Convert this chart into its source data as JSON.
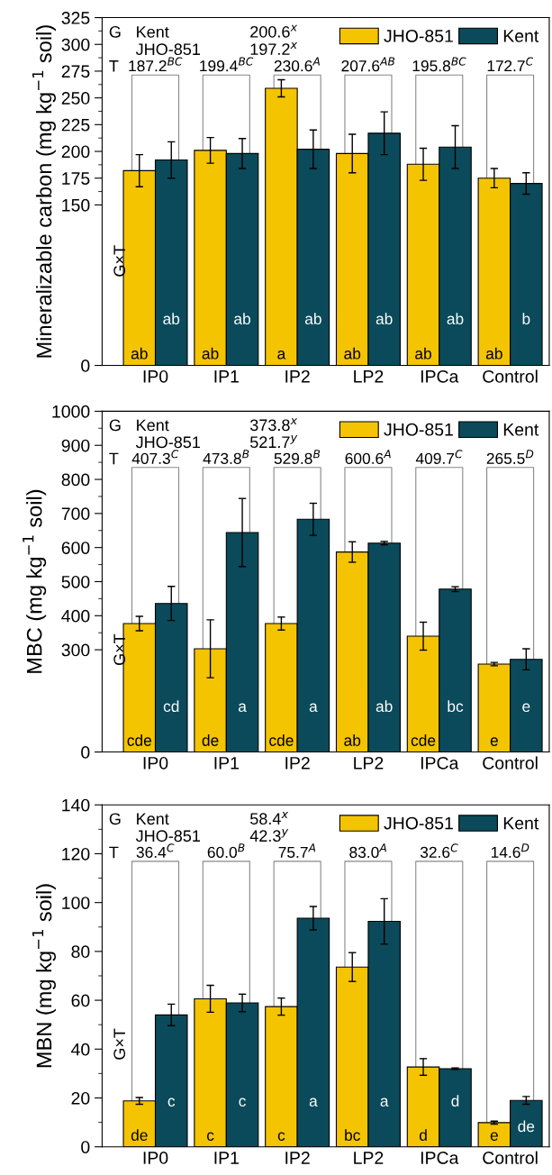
{
  "chart_data": [
    {
      "type": "bar",
      "ylabel": "Mineralizable carbon (mg kg$^{−1}$ soil)",
      "categories": [
        "IP0",
        "IP1",
        "IP2",
        "LP2",
        "IPCa",
        "Control"
      ],
      "ylim": [
        0,
        325
      ],
      "yticks": [
        0,
        150,
        175,
        200,
        225,
        250,
        275,
        300,
        325
      ],
      "legend": "top right",
      "grid": false,
      "series": [
        {
          "name": "JHO-851",
          "color": "#f5c400",
          "values": [
            182,
            201,
            259,
            198,
            188,
            175
          ],
          "errors": [
            15,
            12,
            8,
            18,
            15,
            9
          ],
          "value_labels": [
            "ab",
            "ab",
            "a",
            "ab",
            "ab",
            "ab"
          ]
        },
        {
          "name": "Kent",
          "color": "#0b4a5a",
          "values": [
            192,
            198,
            202,
            217,
            204,
            170
          ],
          "errors": [
            17,
            14,
            18,
            20,
            20,
            10
          ],
          "value_labels": [
            "ab",
            "ab",
            "ab",
            "ab",
            "ab",
            "b"
          ]
        }
      ],
      "annotations": [
        "G",
        "Kent",
        "200.6$^{x}$",
        "JHO-851",
        "197.2$^{x}$",
        "T",
        "G×T",
        "187.2$^{BC}$",
        "199.4$^{BC}$",
        "230.6$^{A}$",
        "207.6$^{AB}$",
        "195.8$^{BC}$",
        "172.7$^{C}$"
      ]
    },
    {
      "type": "bar",
      "ylabel": "MBC (mg kg$^{−1}$ soil)",
      "categories": [
        "IP0",
        "IP1",
        "IP2",
        "LP2",
        "IPCa",
        "Control"
      ],
      "ylim": [
        0,
        1000
      ],
      "yticks": [
        0,
        300,
        400,
        500,
        600,
        700,
        800,
        900,
        1000
      ],
      "legend": "top right",
      "grid": false,
      "series": [
        {
          "name": "JHO-851",
          "color": "#f5c400",
          "values": [
            377,
            303,
            377,
            587,
            340,
            258
          ],
          "errors": [
            21,
            85,
            19,
            30,
            41,
            5
          ],
          "value_labels": [
            "cde",
            "de",
            "cde",
            "ab",
            "cde",
            "e"
          ]
        },
        {
          "name": "Kent",
          "color": "#0b4a5a",
          "values": [
            436,
            644,
            683,
            613,
            478,
            272
          ],
          "errors": [
            50,
            100,
            47,
            5,
            7,
            31
          ],
          "value_labels": [
            "cd",
            "a",
            "a",
            "ab",
            "bc",
            "e"
          ]
        }
      ],
      "annotations": [
        "G",
        "Kent",
        "373.8$^{x}$",
        "JHO-851",
        "521.7$^{y}$",
        "T",
        "G×T",
        "407.3$^{C}$",
        "473.8$^{B}$",
        "529.8$^{B}$",
        "600.6$^{A}$",
        "409.7$^{C}$",
        "265.5$^{D}$"
      ]
    },
    {
      "type": "bar",
      "ylabel": "MBN (mg kg$^{−1}$ soil)",
      "categories": [
        "IP0",
        "IP1",
        "IP2",
        "LP2",
        "IPCa",
        "Control"
      ],
      "ylim": [
        0,
        140
      ],
      "yticks": [
        0,
        20,
        40,
        60,
        80,
        100,
        120,
        140
      ],
      "legend": "top right",
      "grid": false,
      "series": [
        {
          "name": "JHO-851",
          "color": "#f5c400",
          "values": [
            18.8,
            60.6,
            57.4,
            73.6,
            32.7,
            9.9
          ],
          "errors": [
            1.4,
            5.5,
            3.5,
            5.9,
            3.4,
            0.6
          ],
          "value_labels": [
            "de",
            "c",
            "c",
            "bc",
            "d",
            "e"
          ]
        },
        {
          "name": "Kent",
          "color": "#0b4a5a",
          "values": [
            54.0,
            58.9,
            93.6,
            92.3,
            32.0,
            19.0
          ],
          "errors": [
            4.4,
            3.6,
            4.8,
            9.3,
            0.3,
            1.6
          ],
          "value_labels": [
            "c",
            "c",
            "a",
            "a",
            "d",
            "de"
          ]
        }
      ],
      "annotations": [
        "G",
        "Kent",
        "58.4$^{x}$",
        "JHO-851",
        "42.3$^{y}$",
        "T",
        "G×T",
        "36.4$^{C}$",
        "60.0$^{B}$",
        "75.7$^{A}$",
        "83.0$^{A}$",
        "32.6$^{C}$",
        "14.6$^{D}$"
      ]
    }
  ]
}
